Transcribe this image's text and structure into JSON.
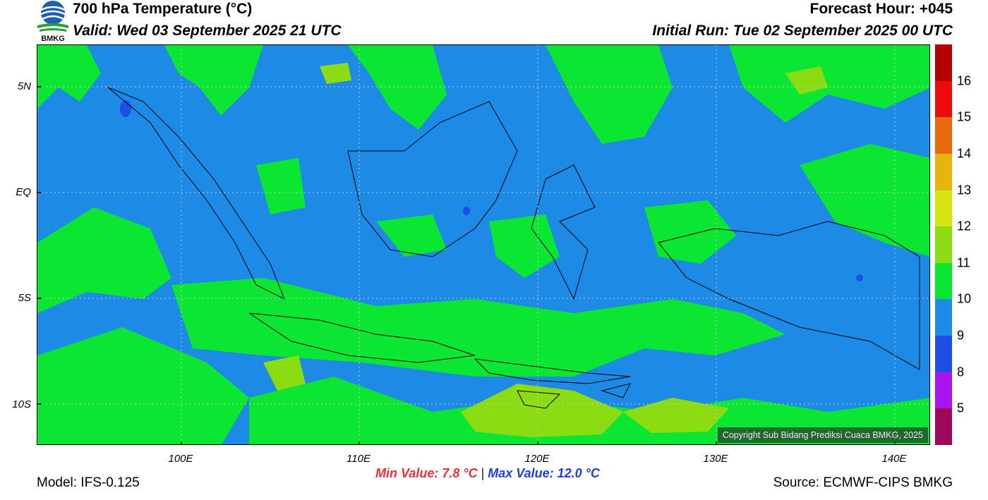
{
  "logo": {
    "text": "BMKG"
  },
  "header": {
    "title": "700 hPa Temperature (°C)",
    "valid": "Valid: Wed 03 September 2025 21 UTC",
    "forecast_hour": "Forecast Hour: +045",
    "initial_run": "Initial Run: Tue 02 September 2025 00 UTC"
  },
  "map": {
    "copyright": "Copyright Sub Bidang Prediksi Cuaca BMKG, 2025",
    "lat_labels": [
      "5N",
      "EQ",
      "5S",
      "10S"
    ],
    "lon_labels": [
      "100E",
      "110E",
      "120E",
      "130E",
      "140E"
    ]
  },
  "colorbar": {
    "labels": [
      "16",
      "15",
      "14",
      "13",
      "12",
      "11",
      "10",
      "9",
      "8",
      "5"
    ],
    "colors": [
      "#b40000",
      "#ee0a0a",
      "#e8680c",
      "#e6b40c",
      "#d6e414",
      "#8cdc14",
      "#0ae632",
      "#1d8ae6",
      "#1e4ee6",
      "#aa14ee",
      "#a0085a"
    ]
  },
  "footer": {
    "model": "Model: IFS-0.125",
    "min_value": "Min Value: 7.8 °C",
    "separator": "|",
    "max_value": "Max Value: 12.0 °C",
    "source": "Source: ECMWF-CIPS BMKG"
  }
}
